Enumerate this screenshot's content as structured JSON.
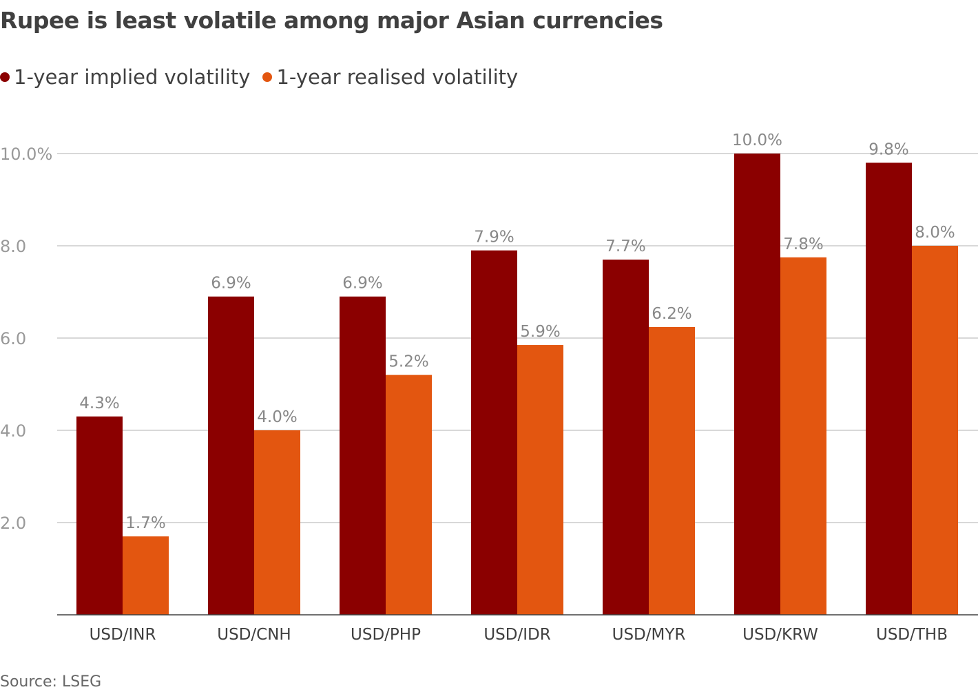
{
  "chart_data": {
    "type": "bar",
    "title": "Rupee is least volatile among major Asian currencies",
    "categories": [
      "USD/INR",
      "USD/CNH",
      "USD/PHP",
      "USD/IDR",
      "USD/MYR",
      "USD/KRW",
      "USD/THB"
    ],
    "series": [
      {
        "name": "1-year implied volatility",
        "color": "#8b0000",
        "values": [
          4.3,
          6.9,
          6.9,
          7.9,
          7.7,
          10.0,
          9.8
        ],
        "labels": [
          "4.3%",
          "6.9%",
          "6.9%",
          "7.9%",
          "7.7%",
          "10.0%",
          "9.8%"
        ]
      },
      {
        "name": "1-year realised volatility",
        "color": "#e35610",
        "values": [
          1.7,
          4.0,
          5.2,
          5.85,
          6.24,
          7.75,
          8.0
        ],
        "labels": [
          "1.7%",
          "4.0%",
          "5.2%",
          "5.9%",
          "6.2%",
          "7.8%",
          "8.0%"
        ]
      }
    ],
    "yticks": [
      2,
      4,
      6,
      8,
      10
    ],
    "ytick_labels": [
      "2.0",
      "4.0",
      "6.0",
      "8.0",
      "10.0%"
    ],
    "ylim": [
      0,
      10
    ],
    "grid": true,
    "legend": "top-left",
    "xlabel": "",
    "ylabel": "",
    "source": "Source: LSEG"
  }
}
